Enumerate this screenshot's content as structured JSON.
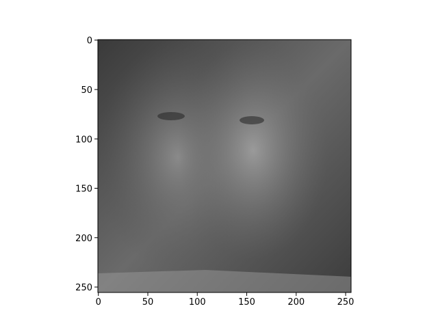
{
  "chart_data": {
    "type": "image",
    "xlim": [
      -0.5,
      255.5
    ],
    "ylim": [
      255.5,
      -0.5
    ],
    "xticks": [
      0,
      50,
      100,
      150,
      200,
      250
    ],
    "yticks": [
      0,
      50,
      100,
      150,
      200,
      250
    ],
    "colormap": "gray"
  }
}
